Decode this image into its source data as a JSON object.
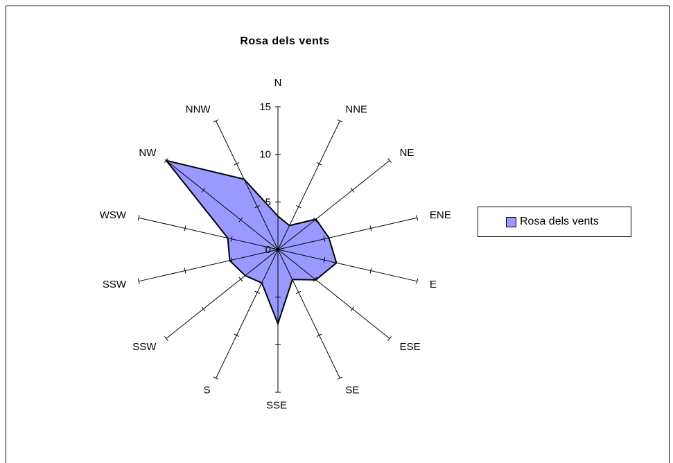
{
  "chart_data": {
    "type": "radar",
    "title": "Rosa dels vents",
    "directions": [
      "N",
      "NNE",
      "NE",
      "ENE",
      "E",
      "ESE",
      "SE",
      "SSE",
      "S",
      "SSW",
      "SSW",
      "WSW",
      "NW",
      "NNW"
    ],
    "series": [
      {
        "name": "Rosa dels vents",
        "values": [
          3.5,
          2.8,
          5.1,
          5.5,
          6.3,
          5.1,
          3.5,
          7.8,
          3.9,
          4.4,
          5.2,
          5.4,
          15.0,
          8.2
        ]
      }
    ],
    "rlim": [
      0,
      15
    ],
    "ticks": [
      "0",
      "5",
      "10",
      "15"
    ],
    "legend_position": "right",
    "colors": {
      "fill": "#9999ff",
      "stroke": "#000000"
    }
  }
}
